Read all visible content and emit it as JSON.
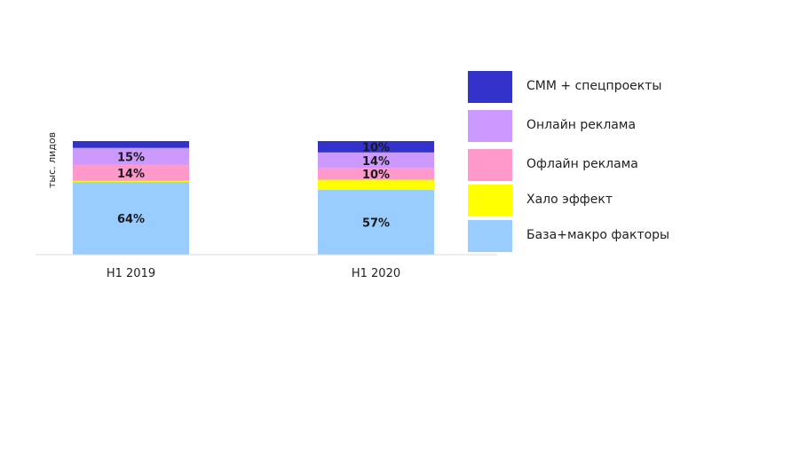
{
  "chart_data": {
    "type": "bar",
    "stacked": true,
    "ylabel": "тыс. лидов",
    "categories": [
      "H1 2019",
      "H1 2020"
    ],
    "series": [
      {
        "name": "База+макро факторы",
        "color": "#99ccff",
        "values": [
          64,
          57
        ],
        "labels": [
          "64%",
          "57%"
        ]
      },
      {
        "name": "Хало эффект",
        "color": "#ffff00",
        "values": [
          1,
          9
        ],
        "labels": [
          "",
          ""
        ]
      },
      {
        "name": "Офлайн реклама",
        "color": "#ff99cc",
        "values": [
          14,
          10
        ],
        "labels": [
          "14%",
          "10%"
        ]
      },
      {
        "name": "Онлайн реклама",
        "color": "#cc99ff",
        "values": [
          15,
          14
        ],
        "labels": [
          "15%",
          "14%"
        ]
      },
      {
        "name": "СММ + спецпроекты",
        "color": "#3333cc",
        "values": [
          6,
          10
        ],
        "labels": [
          "",
          "10%"
        ]
      }
    ],
    "legend_order": [
      4,
      3,
      2,
      1,
      0
    ],
    "legend_position": "right",
    "grid": false
  }
}
